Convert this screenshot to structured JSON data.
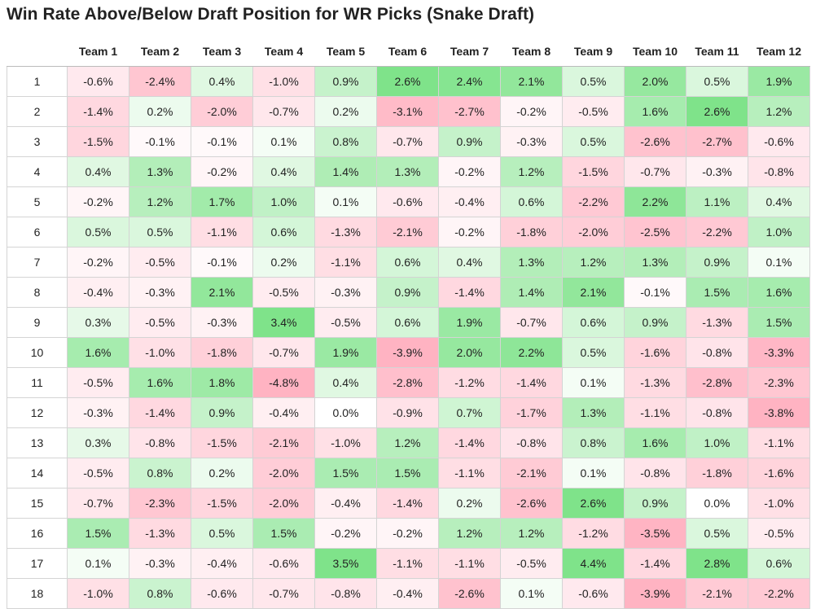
{
  "chart_data": {
    "type": "heatmap",
    "title": "Win Rate Above/Below Draft Position for WR Picks (Snake Draft)",
    "columns": [
      "Team 1",
      "Team 2",
      "Team 3",
      "Team 4",
      "Team 5",
      "Team 6",
      "Team 7",
      "Team 8",
      "Team 9",
      "Team 10",
      "Team 11",
      "Team 12"
    ],
    "rows": [
      "1",
      "2",
      "3",
      "4",
      "5",
      "6",
      "7",
      "8",
      "9",
      "10",
      "11",
      "12",
      "13",
      "14",
      "15",
      "16",
      "17",
      "18"
    ],
    "values": [
      [
        -0.6,
        -2.4,
        0.4,
        -1.0,
        0.9,
        2.6,
        2.4,
        2.1,
        0.5,
        2.0,
        0.5,
        1.9
      ],
      [
        -1.4,
        0.2,
        -2.0,
        -0.7,
        0.2,
        -3.1,
        -2.7,
        -0.2,
        -0.5,
        1.6,
        2.6,
        1.2
      ],
      [
        -1.5,
        -0.1,
        -0.1,
        0.1,
        0.8,
        -0.7,
        0.9,
        -0.3,
        0.5,
        -2.6,
        -2.7,
        -0.6
      ],
      [
        0.4,
        1.3,
        -0.2,
        0.4,
        1.4,
        1.3,
        -0.2,
        1.2,
        -1.5,
        -0.7,
        -0.3,
        -0.8
      ],
      [
        -0.2,
        1.2,
        1.7,
        1.0,
        0.1,
        -0.6,
        -0.4,
        0.6,
        -2.2,
        2.2,
        1.1,
        0.4
      ],
      [
        0.5,
        0.5,
        -1.1,
        0.6,
        -1.3,
        -2.1,
        -0.2,
        -1.8,
        -2.0,
        -2.5,
        -2.2,
        1.0
      ],
      [
        -0.2,
        -0.5,
        -0.1,
        0.2,
        -1.1,
        0.6,
        0.4,
        1.3,
        1.2,
        1.3,
        0.9,
        0.1
      ],
      [
        -0.4,
        -0.3,
        2.1,
        -0.5,
        -0.3,
        0.9,
        -1.4,
        1.4,
        2.1,
        -0.1,
        1.5,
        1.6
      ],
      [
        0.3,
        -0.5,
        -0.3,
        3.4,
        -0.5,
        0.6,
        1.9,
        -0.7,
        0.6,
        0.9,
        -1.3,
        1.5
      ],
      [
        1.6,
        -1.0,
        -1.8,
        -0.7,
        1.9,
        -3.9,
        2.0,
        2.2,
        0.5,
        -1.6,
        -0.8,
        -3.3
      ],
      [
        -0.5,
        1.6,
        1.8,
        -4.8,
        0.4,
        -2.8,
        -1.2,
        -1.4,
        0.1,
        -1.3,
        -2.8,
        -2.3
      ],
      [
        -0.3,
        -1.4,
        0.9,
        -0.4,
        0.0,
        -0.9,
        0.7,
        -1.7,
        1.3,
        -1.1,
        -0.8,
        -3.8
      ],
      [
        0.3,
        -0.8,
        -1.5,
        -2.1,
        -1.0,
        1.2,
        -1.4,
        -0.8,
        0.8,
        1.6,
        1.0,
        -1.1
      ],
      [
        -0.5,
        0.8,
        0.2,
        -2.0,
        1.5,
        1.5,
        -1.1,
        -2.1,
        0.1,
        -0.8,
        -1.8,
        -1.6
      ],
      [
        -0.7,
        -2.3,
        -1.5,
        -2.0,
        -0.4,
        -1.4,
        0.2,
        -2.6,
        2.6,
        0.9,
        0.0,
        -1.0
      ],
      [
        1.5,
        -1.3,
        0.5,
        1.5,
        -0.2,
        -0.2,
        1.2,
        1.2,
        -1.2,
        -3.5,
        0.5,
        -0.5
      ],
      [
        0.1,
        -0.3,
        -0.4,
        -0.6,
        3.5,
        -1.1,
        -1.1,
        -0.5,
        4.4,
        -1.4,
        2.8,
        0.6
      ],
      [
        -1.0,
        0.8,
        -0.6,
        -0.7,
        -0.8,
        -0.4,
        -2.6,
        0.1,
        -0.6,
        -3.9,
        -2.1,
        -2.2
      ]
    ],
    "value_suffix": "%",
    "colors": {
      "positive": "#7fe38a",
      "negative": "#ffb3c2",
      "neutral": "#ffffff"
    }
  }
}
